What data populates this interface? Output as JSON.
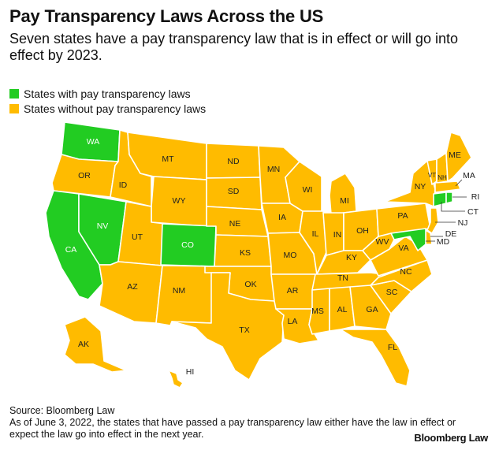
{
  "header": {
    "title": "Pay Transparency Laws Across the US",
    "subtitle": "Seven states have a pay transparency law that is in effect or will go into effect by 2023."
  },
  "legend": {
    "with_law": {
      "label": "States with pay transparency laws",
      "color": "#22cc22"
    },
    "without_law": {
      "label": "States without pay transparency laws",
      "color": "#ffbb00"
    }
  },
  "states_with_law": [
    "WA",
    "NV",
    "CA",
    "CO",
    "MD",
    "CT",
    "RI"
  ],
  "map_labels": {
    "WA": "WA",
    "OR": "OR",
    "CA": "CA",
    "NV": "NV",
    "ID": "ID",
    "MT": "MT",
    "WY": "WY",
    "UT": "UT",
    "CO": "CO",
    "AZ": "AZ",
    "NM": "NM",
    "ND": "ND",
    "SD": "SD",
    "NE": "NE",
    "KS": "KS",
    "OK": "OK",
    "TX": "TX",
    "MN": "MN",
    "IA": "IA",
    "MO": "MO",
    "AR": "AR",
    "LA": "LA",
    "WI": "WI",
    "IL": "IL",
    "MI": "MI",
    "IN": "IN",
    "OH": "OH",
    "KY": "KY",
    "TN": "TN",
    "MS": "MS",
    "AL": "AL",
    "GA": "GA",
    "FL": "FL",
    "SC": "SC",
    "NC": "NC",
    "VA": "VA",
    "WV": "WV",
    "PA": "PA",
    "NY": "NY",
    "VT": "VT",
    "NH": "NH",
    "ME": "ME",
    "MA": "MA",
    "RI": "RI",
    "CT": "CT",
    "NJ": "NJ",
    "DE": "DE",
    "MD": "MD",
    "AK": "AK",
    "HI": "HI"
  },
  "footer": {
    "source": "Source: Bloomberg Law",
    "note": "As of June 3, 2022, the states that have passed a pay transparency law either have the law in effect or expect the law go into effect in the next year.",
    "brand": "Bloomberg Law"
  }
}
